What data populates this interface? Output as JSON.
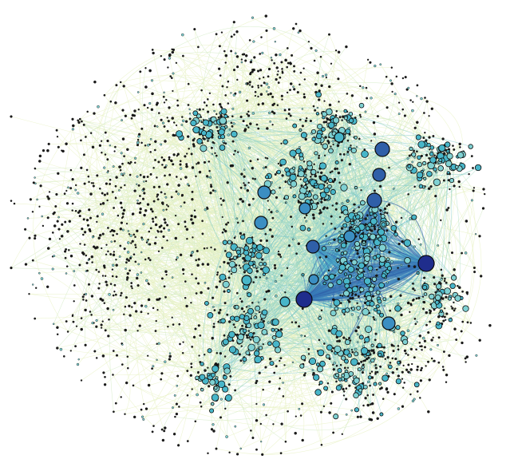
{
  "figure": {
    "kind": "network-graph-visualization",
    "background": "#ffffff",
    "edge_colors": [
      "#e8f2c4",
      "#d3ebc6",
      "#a9dcc5",
      "#7cc9c9",
      "#4fb1c9",
      "#3a84bd",
      "#2f5fa8"
    ],
    "node_colors": [
      "#1f2d8c",
      "#2f5fa8",
      "#3b8ec2",
      "#48b6c9",
      "#7fd1d2",
      "#1b1b1b"
    ],
    "node_outline": "#0b0b0b"
  }
}
